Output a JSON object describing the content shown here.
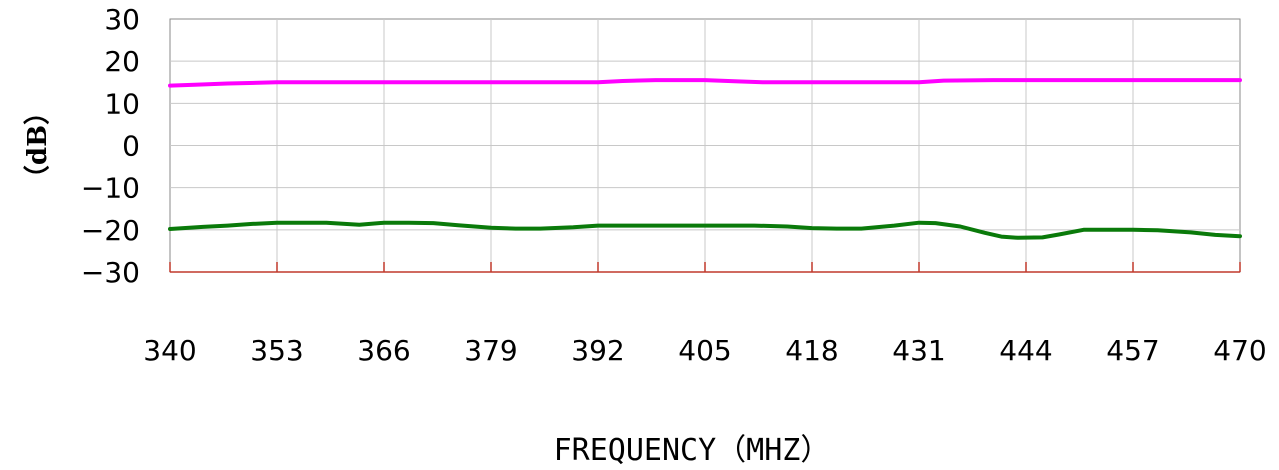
{
  "chart_data": {
    "type": "line",
    "title": "",
    "xlabel": "FREQUENCY（MHZ）",
    "ylabel": "（dB）",
    "xlim": [
      340,
      470
    ],
    "ylim": [
      -30,
      30
    ],
    "x_ticks": [
      340,
      353,
      366,
      379,
      392,
      405,
      418,
      431,
      444,
      457,
      470
    ],
    "x_tick_labels": [
      "340",
      "353",
      "366",
      "379",
      "392",
      "405",
      "418",
      "431",
      "444",
      "457",
      "470"
    ],
    "y_ticks": [
      30,
      20,
      10,
      0,
      -10,
      -20,
      -30
    ],
    "y_tick_labels": [
      "30",
      "20",
      "10",
      "0",
      "−10",
      "−20",
      "−30"
    ],
    "grid": true,
    "series": [
      {
        "color": "#ff00ff",
        "x": [
          340,
          343,
          347,
          353,
          360,
          366,
          372,
          379,
          385,
          392,
          395,
          399,
          405,
          409,
          412,
          418,
          424,
          431,
          434,
          440,
          446,
          452,
          457,
          464,
          470
        ],
        "y": [
          14.2,
          14.4,
          14.7,
          15.0,
          15.0,
          15.0,
          15.0,
          15.0,
          15.0,
          15.0,
          15.3,
          15.5,
          15.5,
          15.2,
          15.0,
          15.0,
          15.0,
          15.0,
          15.4,
          15.5,
          15.5,
          15.5,
          15.5,
          15.5,
          15.5
        ]
      },
      {
        "color": "#0a7a0a",
        "x": [
          340,
          344,
          347,
          350,
          353,
          356,
          359,
          363,
          366,
          369,
          372,
          375,
          379,
          382,
          385,
          389,
          392,
          395,
          398,
          402,
          405,
          408,
          411,
          415,
          418,
          421,
          424,
          428,
          431,
          433,
          436,
          439,
          441,
          443,
          446,
          448,
          451,
          454,
          457,
          460,
          464,
          467,
          470
        ],
        "y": [
          -19.8,
          -19.3,
          -19.0,
          -18.6,
          -18.3,
          -18.3,
          -18.3,
          -18.8,
          -18.3,
          -18.3,
          -18.4,
          -18.9,
          -19.5,
          -19.7,
          -19.7,
          -19.4,
          -19.0,
          -19.0,
          -19.0,
          -19.0,
          -19.0,
          -19.0,
          -19.0,
          -19.2,
          -19.6,
          -19.7,
          -19.7,
          -19.0,
          -18.3,
          -18.4,
          -19.2,
          -20.7,
          -21.6,
          -21.9,
          -21.8,
          -21.1,
          -20.0,
          -20.0,
          -20.0,
          -20.1,
          -20.6,
          -21.2,
          -21.5
        ]
      }
    ]
  }
}
